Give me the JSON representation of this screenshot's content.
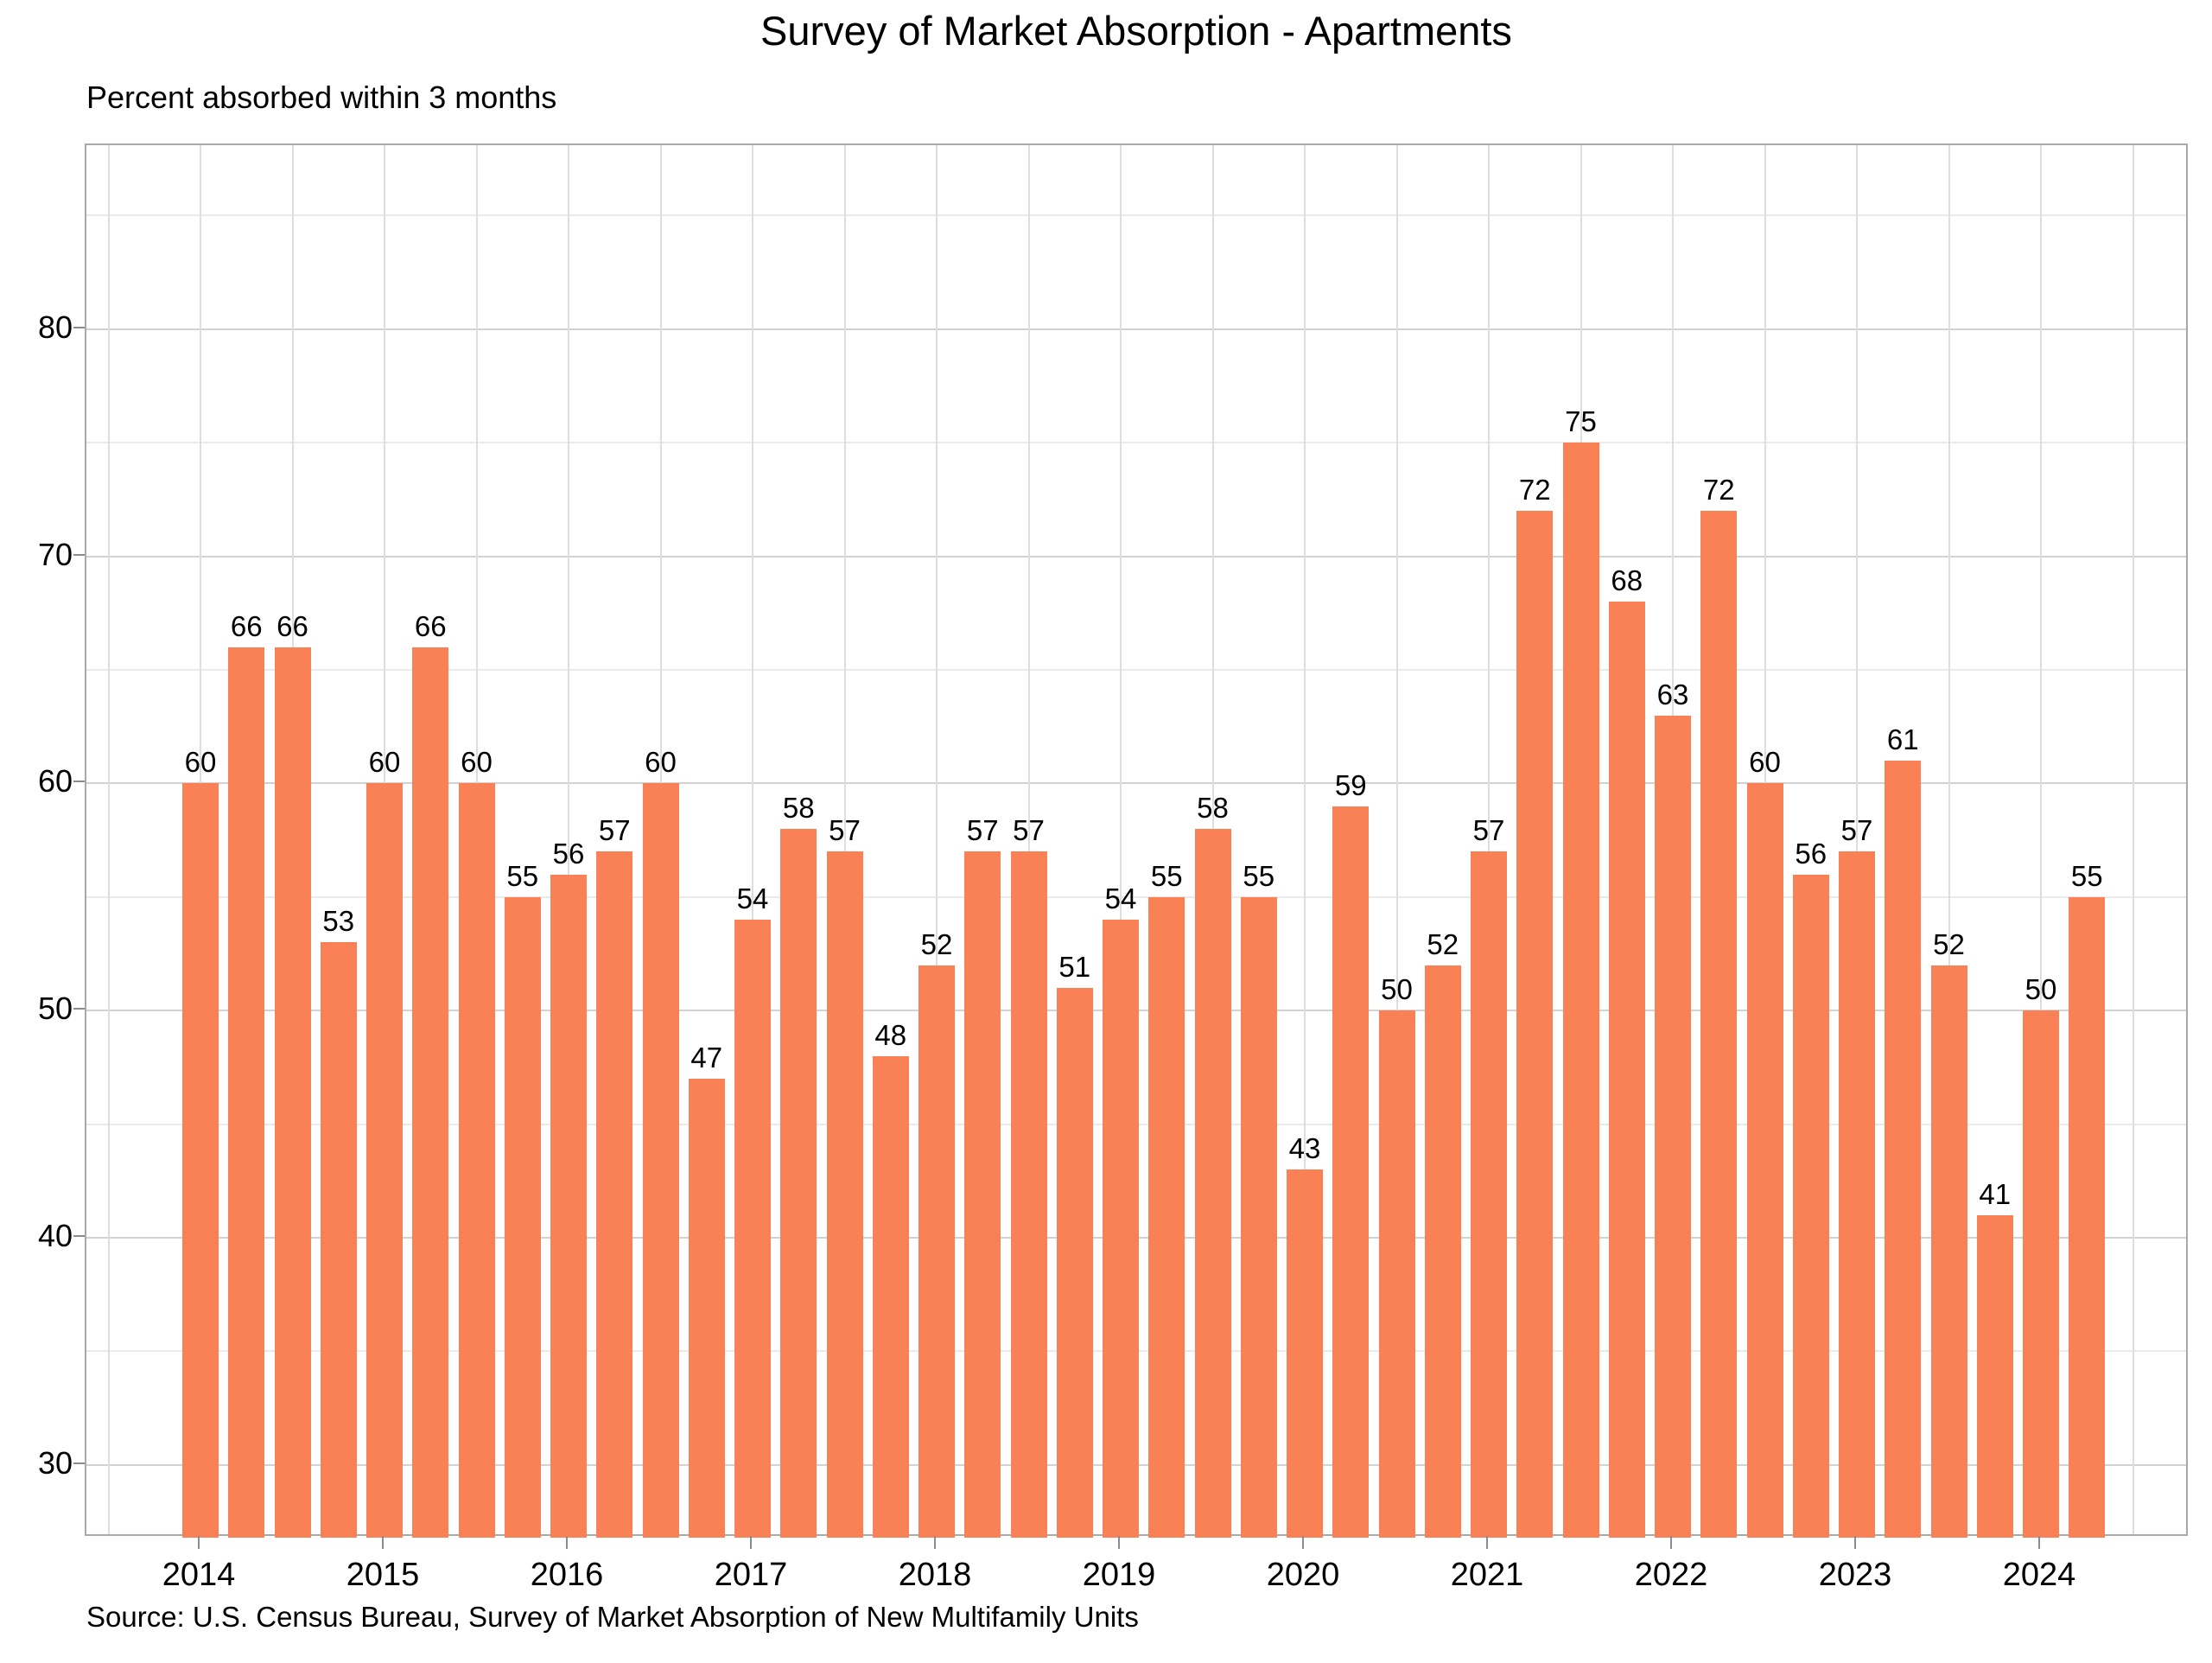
{
  "header": {
    "title": "Survey of Market Absorption - Apartments",
    "subtitle": "Percent absorbed within 3 months"
  },
  "footer": {
    "source": "Source: U.S. Census Bureau, Survey of Market Absorption of New Multifamily Units"
  },
  "colors": {
    "bar": "#FA8155",
    "grid_major": "#d2d2d2",
    "grid_minor": "#eaeaea",
    "grid_vertical": "#dedede",
    "panel_border": "#a9a9a9",
    "tick": "#8c8c8c",
    "text": "#000000"
  },
  "chart_data": {
    "type": "bar",
    "title": "Survey of Market Absorption - Apartments",
    "subtitle": "Percent absorbed within 3 months",
    "xlabel": "",
    "ylabel": "Percent absorbed within 3 months",
    "x": [
      "2014Q1",
      "2014Q2",
      "2014Q3",
      "2014Q4",
      "2015Q1",
      "2015Q2",
      "2015Q3",
      "2015Q4",
      "2016Q1",
      "2016Q2",
      "2016Q3",
      "2016Q4",
      "2017Q1",
      "2017Q2",
      "2017Q3",
      "2017Q4",
      "2018Q1",
      "2018Q2",
      "2018Q3",
      "2018Q4",
      "2019Q1",
      "2019Q2",
      "2019Q3",
      "2019Q4",
      "2020Q1",
      "2020Q2",
      "2020Q3",
      "2020Q4",
      "2021Q1",
      "2021Q2",
      "2021Q3",
      "2021Q4",
      "2022Q1",
      "2022Q2",
      "2022Q3",
      "2022Q4",
      "2023Q1",
      "2023Q2",
      "2023Q3",
      "2023Q4",
      "2024Q1",
      "2024Q2"
    ],
    "values": [
      60,
      66,
      66,
      53,
      60,
      66,
      60,
      55,
      56,
      57,
      60,
      47,
      54,
      58,
      57,
      48,
      52,
      57,
      57,
      51,
      54,
      55,
      58,
      55,
      43,
      59,
      50,
      52,
      57,
      72,
      75,
      68,
      63,
      72,
      60,
      56,
      57,
      61,
      52,
      41,
      50,
      55
    ],
    "bar_labels_shown": true,
    "xticklabels": [
      "2014",
      "2015",
      "2016",
      "2017",
      "2018",
      "2019",
      "2020",
      "2021",
      "2022",
      "2023",
      "2024"
    ],
    "yticks": [
      30,
      40,
      50,
      60,
      70,
      80
    ],
    "yticks_minor": [
      35,
      45,
      55,
      65,
      75,
      85
    ],
    "ylim": [
      26.8,
      88.1
    ],
    "grid": "horizontal major+minor, vertical at half-year",
    "legend": "none",
    "source": "Source: U.S. Census Bureau, Survey of Market Absorption of New Multifamily Units"
  }
}
